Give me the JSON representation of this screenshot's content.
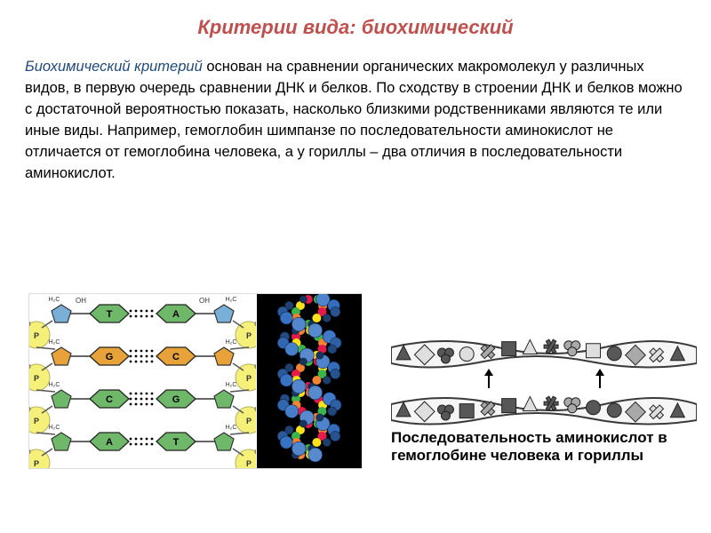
{
  "title": {
    "text": "Критерии вида: биохимический",
    "color": "#c0504d"
  },
  "body": {
    "lead": "Биохимический критерий",
    "lead_color": "#1f497d",
    "rest": " основан на сравнении органических макромолекул у различных видов, в первую очередь сравнении ДНК и белков. По сходству в строении ДНК и белков можно с достаточной вероятностью показать, насколько близкими родственниками являются те или иные виды. Например, гемоглобин шимпанзе по последовательности аминокислот не отличается от гемоглобина человека, а у гориллы – два отличия в последовательности аминокислот."
  },
  "dna_flat": {
    "phosphate_color": "#f5f07a",
    "sugar_colors": [
      "#7ab0d8",
      "#e8a23a",
      "#6fb86a",
      "#6fb86a"
    ],
    "base_pairs": [
      {
        "left": "T",
        "right": "A",
        "left_color": "#6fb86a",
        "right_color": "#6fb86a"
      },
      {
        "left": "G",
        "right": "C",
        "left_color": "#e8a23a",
        "right_color": "#e8a23a"
      },
      {
        "left": "C",
        "right": "G",
        "left_color": "#6fb86a",
        "right_color": "#6fb86a"
      },
      {
        "left": "A",
        "right": "T",
        "left_color": "#6fb86a",
        "right_color": "#6fb86a"
      }
    ],
    "label_oh": "OH",
    "label_h2c": "H₂C",
    "label_o": "O",
    "label_p": "P",
    "font_size": 7
  },
  "helix": {
    "background": "#000000",
    "strand_colors": [
      "#4a80c8",
      "#4a80c8"
    ],
    "base_colors": [
      "#3cb44b",
      "#f58231",
      "#e6194b",
      "#ffe119"
    ]
  },
  "protein_diagram": {
    "band_fill": "#f5f5f5",
    "band_stroke": "#3a3a3a",
    "shape_colors": {
      "light": "#dedede",
      "mid": "#a9a9a9",
      "dark": "#575757"
    },
    "arrow_color": "#000000",
    "caption": "Последовательность аминокислот в гемоглобине человека и гориллы"
  }
}
